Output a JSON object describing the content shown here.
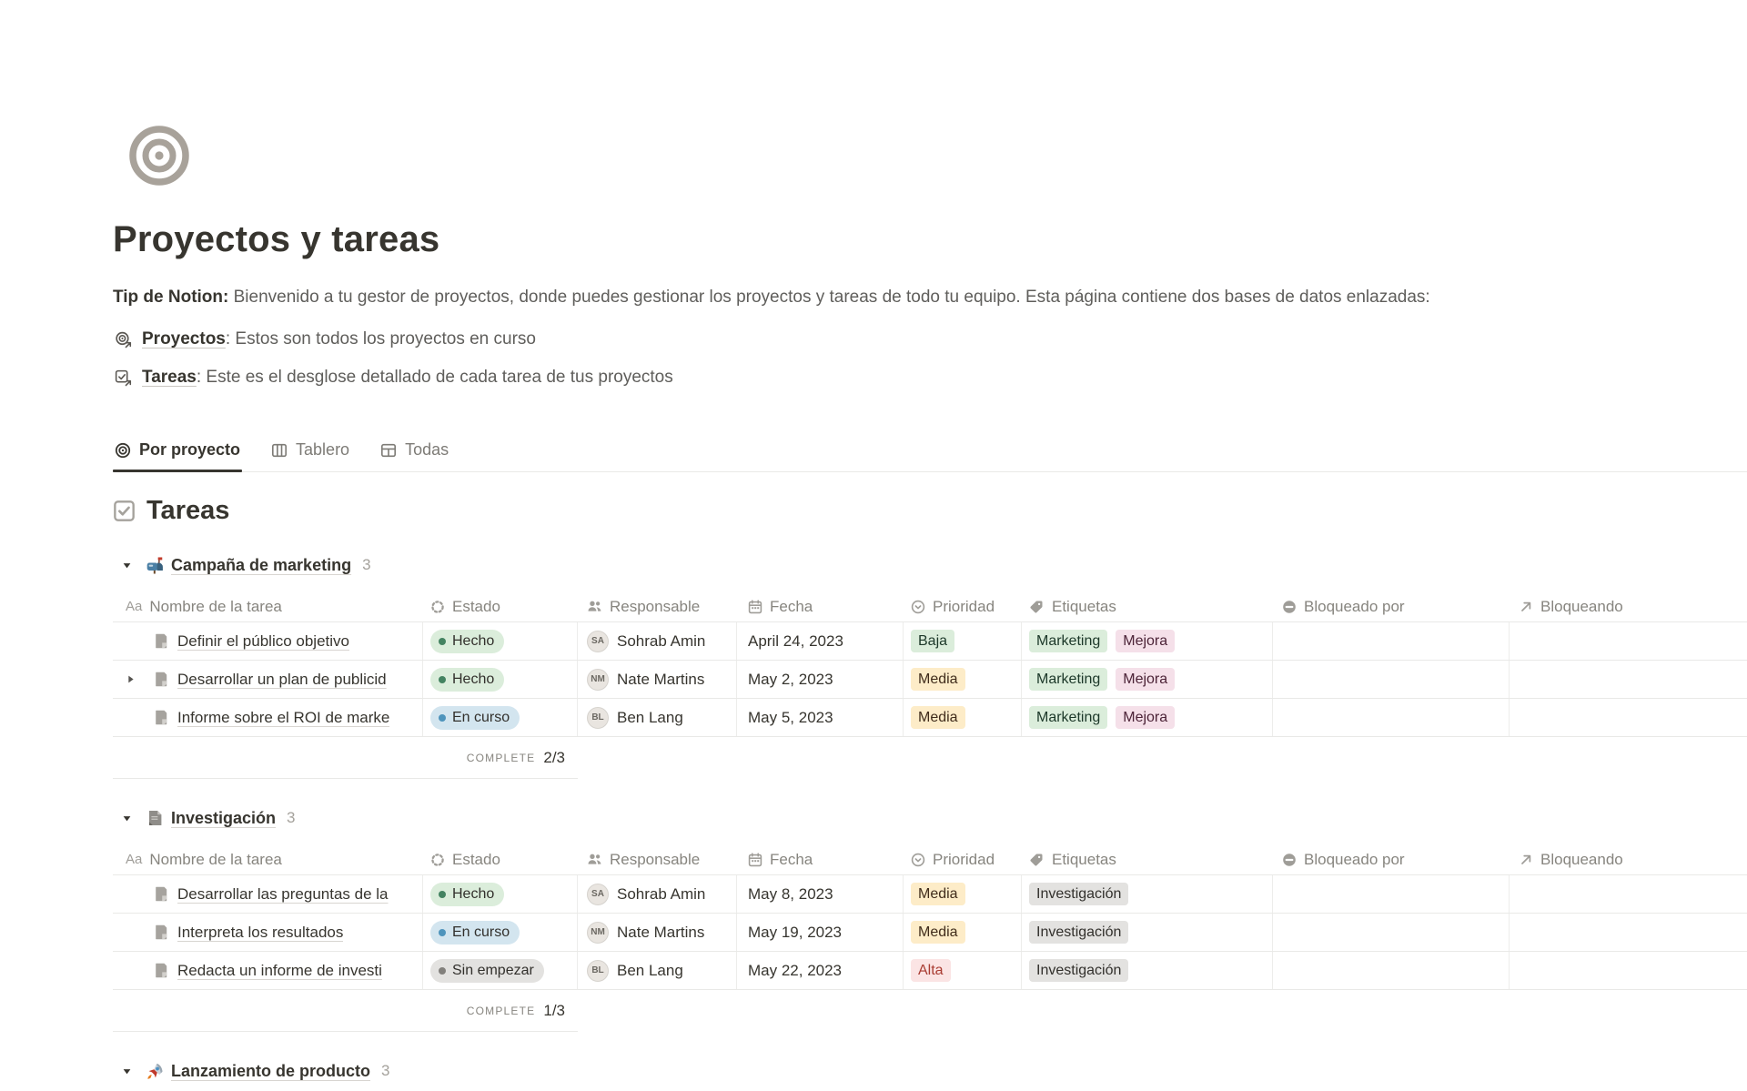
{
  "page": {
    "title": "Proyectos y tareas",
    "icon": "bullseye-icon"
  },
  "intro": {
    "lead": "Tip de Notion:",
    "text": " Bienvenido a tu gestor de proyectos, donde puedes gestionar los proyectos y tareas de todo tu equipo. Esta página contiene dos bases de datos enlazadas:"
  },
  "links": [
    {
      "icon": "projects-link-icon",
      "label": "Proyectos",
      "desc": ": Estos son todos los proyectos en curso"
    },
    {
      "icon": "tasks-link-icon",
      "label": "Tareas",
      "desc": ": Este es el desglose detallado de cada tarea de tus proyectos"
    }
  ],
  "tabs": [
    {
      "label": "Por proyecto",
      "icon": "target-icon",
      "active": true
    },
    {
      "label": "Tablero",
      "icon": "board-icon",
      "active": false
    },
    {
      "label": "Todas",
      "icon": "table-icon",
      "active": false
    }
  ],
  "section": {
    "icon": "checkbox-icon",
    "title": "Tareas"
  },
  "table": {
    "headers": [
      {
        "label": "Nombre de la tarea",
        "icon": "aa-icon"
      },
      {
        "label": "Estado",
        "icon": "status-icon"
      },
      {
        "label": "Responsable",
        "icon": "people-icon"
      },
      {
        "label": "Fecha",
        "icon": "calendar-icon"
      },
      {
        "label": "Prioridad",
        "icon": "priority-icon"
      },
      {
        "label": "Etiquetas",
        "icon": "tag-icon"
      },
      {
        "label": "Bloqueado por",
        "icon": "blocked-icon"
      },
      {
        "label": "Bloqueando",
        "icon": "arrow-ne-icon"
      }
    ]
  },
  "summary_label": "COMPLETE",
  "groups": [
    {
      "icon": "mailbox-icon",
      "name": "Campaña de marketing",
      "count": "3",
      "complete": "2/3",
      "rows": [
        {
          "toggle": false,
          "name": "Definir el público objetivo",
          "status": {
            "label": "Hecho",
            "color": "green"
          },
          "assignee": "Sohrab Amin",
          "date": "April 24, 2023",
          "priority": {
            "label": "Baja",
            "color": "green"
          },
          "tags": [
            {
              "label": "Marketing",
              "color": "green"
            },
            {
              "label": "Mejora",
              "color": "pink"
            }
          ],
          "blocked_by": "",
          "blocking": ""
        },
        {
          "toggle": true,
          "name": "Desarrollar un plan de publicid",
          "status": {
            "label": "Hecho",
            "color": "green"
          },
          "assignee": "Nate Martins",
          "date": "May 2, 2023",
          "priority": {
            "label": "Media",
            "color": "yellow"
          },
          "tags": [
            {
              "label": "Marketing",
              "color": "green"
            },
            {
              "label": "Mejora",
              "color": "pink"
            }
          ],
          "blocked_by": "",
          "blocking": ""
        },
        {
          "toggle": false,
          "name": "Informe sobre el ROI de marke",
          "status": {
            "label": "En curso",
            "color": "blue"
          },
          "assignee": "Ben Lang",
          "date": "May 5, 2023",
          "priority": {
            "label": "Media",
            "color": "yellow"
          },
          "tags": [
            {
              "label": "Marketing",
              "color": "green"
            },
            {
              "label": "Mejora",
              "color": "pink"
            }
          ],
          "blocked_by": "",
          "blocking": ""
        }
      ]
    },
    {
      "icon": "document-icon",
      "name": "Investigación",
      "count": "3",
      "complete": "1/3",
      "rows": [
        {
          "toggle": false,
          "name": "Desarrollar las preguntas de la",
          "status": {
            "label": "Hecho",
            "color": "green"
          },
          "assignee": "Sohrab Amin",
          "date": "May 8, 2023",
          "priority": {
            "label": "Media",
            "color": "yellow"
          },
          "tags": [
            {
              "label": "Investigación",
              "color": "gray"
            }
          ],
          "blocked_by": "",
          "blocking": ""
        },
        {
          "toggle": false,
          "name": "Interpreta los resultados",
          "status": {
            "label": "En curso",
            "color": "blue"
          },
          "assignee": "Nate Martins",
          "date": "May 19, 2023",
          "priority": {
            "label": "Media",
            "color": "yellow"
          },
          "tags": [
            {
              "label": "Investigación",
              "color": "gray"
            }
          ],
          "blocked_by": "",
          "blocking": ""
        },
        {
          "toggle": false,
          "name": "Redacta un informe de investi",
          "status": {
            "label": "Sin empezar",
            "color": "gray"
          },
          "assignee": "Ben Lang",
          "date": "May 22, 2023",
          "priority": {
            "label": "Alta",
            "color": "red"
          },
          "tags": [
            {
              "label": "Investigación",
              "color": "gray"
            }
          ],
          "blocked_by": "",
          "blocking": ""
        }
      ]
    },
    {
      "icon": "rocket-icon",
      "name": "Lanzamiento de producto",
      "count": "3",
      "complete": "",
      "header_only": true,
      "rows": []
    }
  ],
  "colors": {
    "badge_green": "#DBEDDB",
    "badge_blue": "#D3E5EF",
    "badge_yellow": "#FDECC8",
    "badge_red": "#FBE4E4",
    "badge_pink": "#F5E0E9",
    "badge_gray": "#E3E2E0",
    "dot_green": "#448361",
    "dot_blue": "#4E94BC",
    "dot_gray": "#82807C",
    "text_primary": "#37352F",
    "text_secondary": "#87857F",
    "divider": "#E9E9E7",
    "tab_underline": "#37352F",
    "page_icon_gray": "#A8A29A"
  }
}
